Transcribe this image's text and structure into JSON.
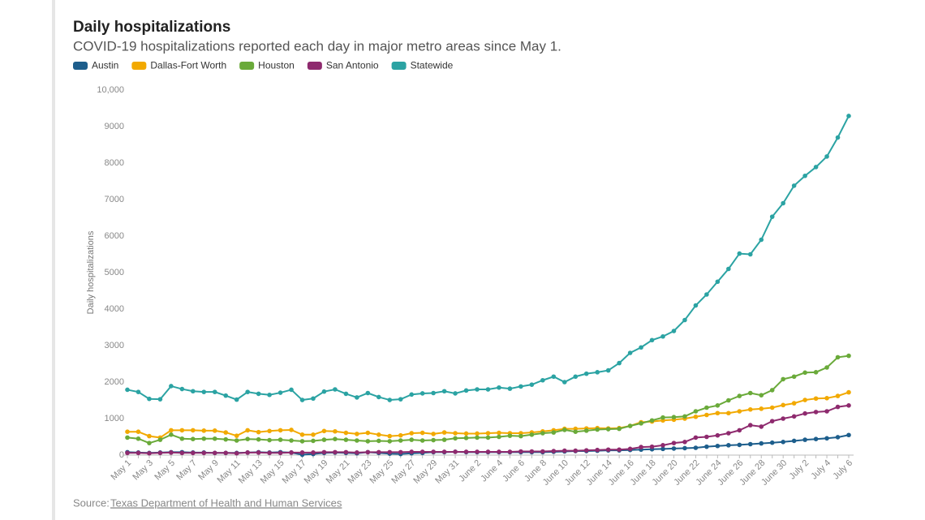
{
  "chart_data": {
    "type": "line",
    "title": "Daily hospitalizations",
    "subtitle": "COVID-19 hospitalizations reported each day in major metro areas since May 1.",
    "y_label": "Daily hospitalizations",
    "source_label": "Source:",
    "source_link": "Texas Department of Health and Human Services",
    "categories": [
      "May 1",
      null,
      "May 3",
      null,
      "May 5",
      null,
      "May 7",
      null,
      "May 9",
      null,
      "May 11",
      null,
      "May 13",
      null,
      "May 15",
      null,
      "May 17",
      null,
      "May 19",
      null,
      "May 21",
      null,
      "May 23",
      null,
      "May 25",
      null,
      "May 27",
      null,
      "May 29",
      null,
      "May 31",
      null,
      "June 2",
      null,
      "June 4",
      null,
      "June 6",
      null,
      "June 8",
      null,
      "June 10",
      null,
      "June 12",
      null,
      "June 14",
      null,
      "June 16",
      null,
      "June 18",
      null,
      "June 20",
      null,
      "June 22",
      null,
      "June 24",
      null,
      "June 26",
      null,
      "June 28",
      null,
      "June 30",
      null,
      "July 2",
      null,
      "July 4",
      null,
      "July 6"
    ],
    "ylim": [
      0,
      10000
    ],
    "yticks": [
      0,
      1000,
      2000,
      3000,
      4000,
      5000,
      6000,
      7000,
      8000,
      9000,
      {
        "value": 10000,
        "label": "10,000"
      }
    ],
    "grid": false,
    "legend": "top-left",
    "series": [
      {
        "name": "Austin",
        "color": "#1d5e8c",
        "values": [
          80,
          70,
          60,
          70,
          80,
          80,
          70,
          70,
          60,
          60,
          60,
          70,
          80,
          70,
          80,
          70,
          10,
          30,
          60,
          70,
          60,
          50,
          80,
          60,
          40,
          30,
          50,
          60,
          80,
          80,
          90,
          80,
          80,
          80,
          80,
          80,
          80,
          80,
          80,
          90,
          100,
          110,
          110,
          120,
          130,
          130,
          140,
          150,
          160,
          170,
          180,
          190,
          200,
          230,
          250,
          270,
          280,
          300,
          320,
          340,
          360,
          390,
          420,
          440,
          460,
          490,
          550
        ]
      },
      {
        "name": "Dallas-Fort Worth",
        "color": "#f2a900",
        "values": [
          640,
          640,
          520,
          480,
          680,
          680,
          680,
          670,
          670,
          620,
          530,
          680,
          630,
          660,
          680,
          690,
          560,
          560,
          660,
          650,
          610,
          580,
          610,
          560,
          520,
          540,
          600,
          610,
          580,
          620,
          600,
          590,
          590,
          600,
          610,
          600,
          600,
          620,
          650,
          680,
          720,
          720,
          730,
          740,
          730,
          740,
          800,
          900,
          920,
          950,
          970,
          1000,
          1050,
          1100,
          1150,
          1150,
          1200,
          1250,
          1270,
          1300,
          1370,
          1420,
          1510,
          1550,
          1560,
          1620,
          1720
        ]
      },
      {
        "name": "Houston",
        "color": "#6aaa3a",
        "values": [
          480,
          450,
          330,
          420,
          560,
          450,
          440,
          450,
          450,
          430,
          400,
          440,
          430,
          410,
          420,
          400,
          380,
          390,
          420,
          440,
          420,
          400,
          380,
          390,
          380,
          400,
          420,
          400,
          410,
          420,
          460,
          470,
          480,
          480,
          500,
          530,
          520,
          560,
          600,
          620,
          690,
          640,
          670,
          700,
          710,
          720,
          800,
          870,
          950,
          1030,
          1040,
          1060,
          1200,
          1300,
          1360,
          1500,
          1620,
          1700,
          1640,
          1780,
          2080,
          2150,
          2260,
          2270,
          2400,
          2680,
          2720
        ]
      },
      {
        "name": "San Antonio",
        "color": "#8e2a6e",
        "values": [
          60,
          60,
          50,
          60,
          70,
          60,
          60,
          60,
          60,
          60,
          50,
          70,
          70,
          60,
          60,
          70,
          70,
          70,
          80,
          80,
          80,
          70,
          80,
          80,
          80,
          80,
          90,
          90,
          90,
          90,
          90,
          90,
          90,
          90,
          90,
          90,
          100,
          100,
          100,
          110,
          120,
          120,
          130,
          140,
          150,
          150,
          170,
          220,
          230,
          270,
          330,
          360,
          480,
          500,
          540,
          600,
          680,
          820,
          780,
          930,
          1000,
          1060,
          1140,
          1180,
          1200,
          1320,
          1360
        ]
      },
      {
        "name": "Statewide",
        "color": "#2ba3a3",
        "values": [
          1790,
          1730,
          1540,
          1530,
          1890,
          1810,
          1750,
          1730,
          1730,
          1630,
          1520,
          1730,
          1680,
          1650,
          1710,
          1790,
          1510,
          1550,
          1740,
          1800,
          1680,
          1580,
          1700,
          1590,
          1510,
          1530,
          1660,
          1690,
          1700,
          1750,
          1690,
          1770,
          1800,
          1800,
          1850,
          1820,
          1880,
          1930,
          2050,
          2150,
          2000,
          2150,
          2230,
          2270,
          2320,
          2520,
          2800,
          2950,
          3150,
          3250,
          3400,
          3700,
          4100,
          4400,
          4750,
          5100,
          5520,
          5500,
          5900,
          6530,
          6900,
          7380,
          7650,
          7890,
          8180,
          8700,
          9290
        ]
      }
    ]
  }
}
